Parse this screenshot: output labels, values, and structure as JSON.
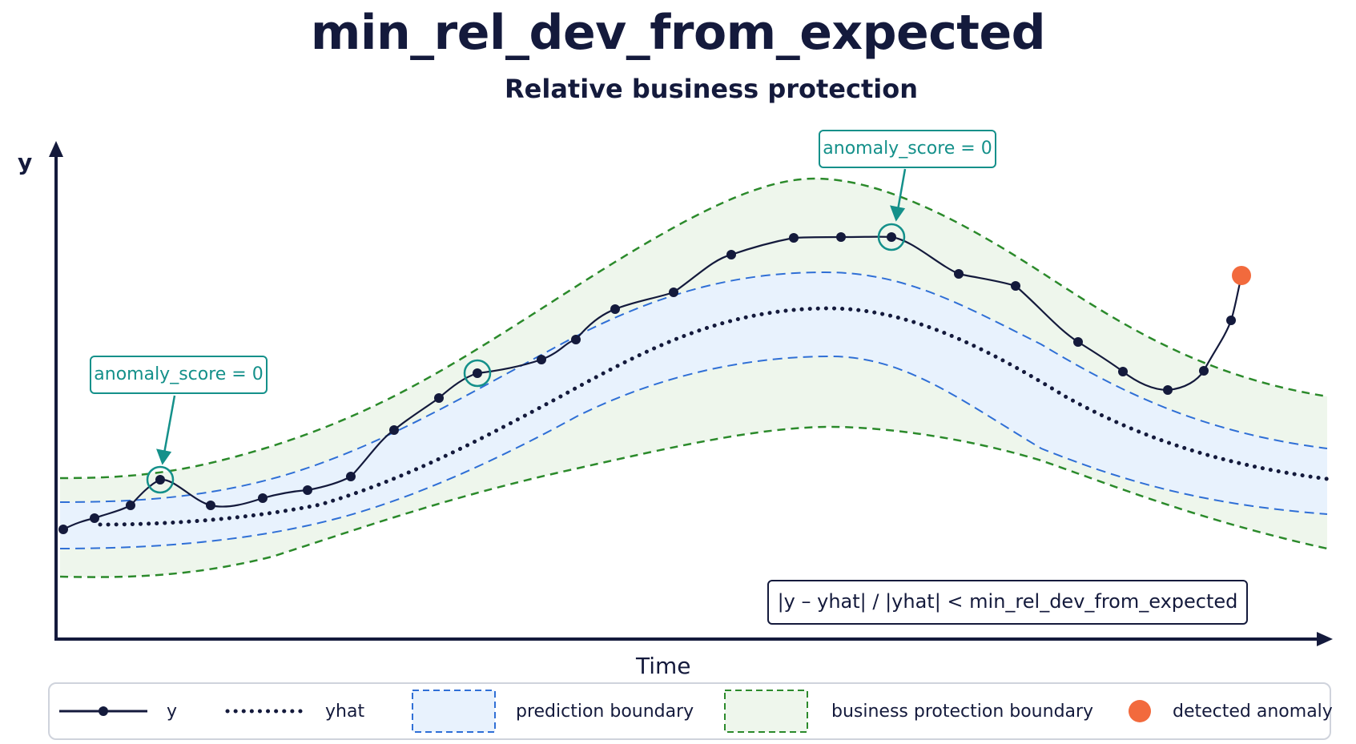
{
  "header": {
    "title": "min_rel_dev_from_expected",
    "subtitle": "Relative business protection"
  },
  "axes": {
    "y_label": "y",
    "x_label": "Time"
  },
  "callouts": [
    {
      "text": "anomaly_score = 0"
    },
    {
      "text": "anomaly_score = 0"
    }
  ],
  "formula": "|y – yhat|  /  |yhat|  <  min_rel_dev_from_expected",
  "legend": {
    "y": "y",
    "yhat": "yhat",
    "prediction": "prediction boundary",
    "business": "business protection boundary",
    "anomaly": "detected anomaly"
  },
  "colors": {
    "ink": "#141a3c",
    "prediction_band": "#e8f2fd",
    "prediction_line": "#2f6fd6",
    "business_band": "#eef6ec",
    "business_line": "#2b8a2b",
    "callout": "#14908a",
    "anomaly": "#f26a3d"
  }
}
